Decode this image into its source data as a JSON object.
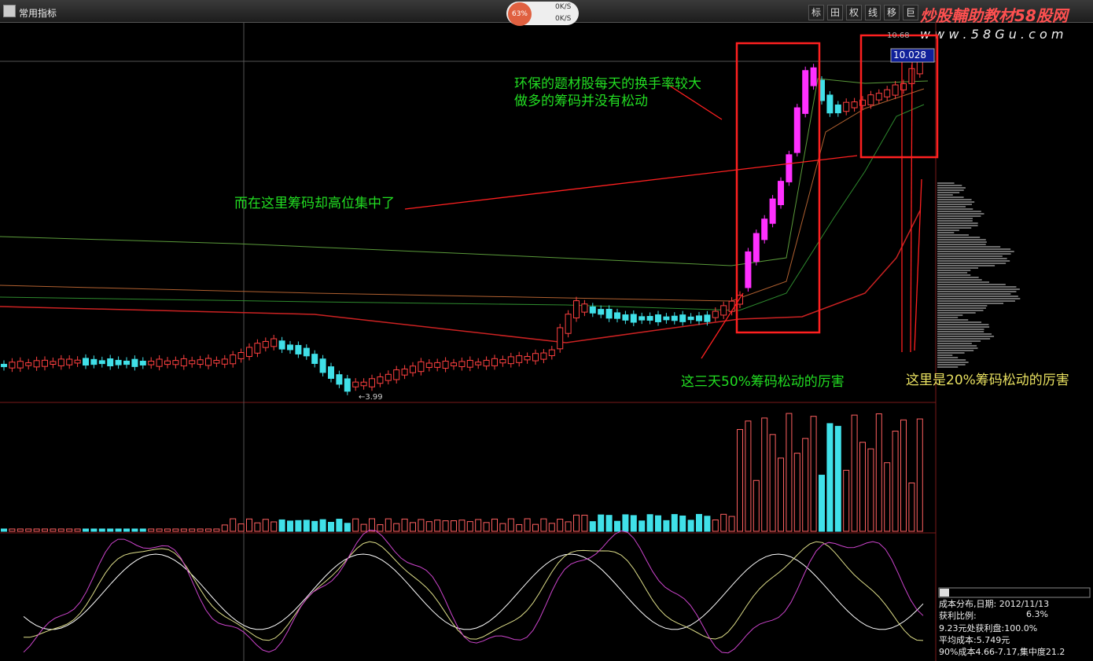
{
  "toolbar": {
    "indicator_menu": "常用指标",
    "progress": "63%",
    "upload_speed": "0K/S",
    "download_speed": "0K/S",
    "buttons": [
      "标",
      "田",
      "权",
      "线",
      "移",
      "巨"
    ]
  },
  "watermark": {
    "title": "炒股輔助教材58股网",
    "url": "w w w . 5 8 G u . c o m"
  },
  "price_chart": {
    "current_price": "10.028",
    "high_label": "10.68",
    "low_label": "←3.99"
  },
  "annotations": [
    "环保的题材股每天的换手率较大",
    "做多的筹码并没有松动",
    "而在这里筹码却高位集中了",
    "这三天50%筹码松动的厉害",
    "这里是20%筹码松动的厉害"
  ],
  "cost_distribution": {
    "header": "成本分布,日期: 2012/11/13",
    "profit_ratio_label": "获利比例:",
    "profit_ratio": "6.3%",
    "profit_at_price": "9.23元处获利盘:100.0%",
    "average_cost": "平均成本:5.749元",
    "cost_90": "90%成本4.66-7.17,集中度21.2"
  }
}
